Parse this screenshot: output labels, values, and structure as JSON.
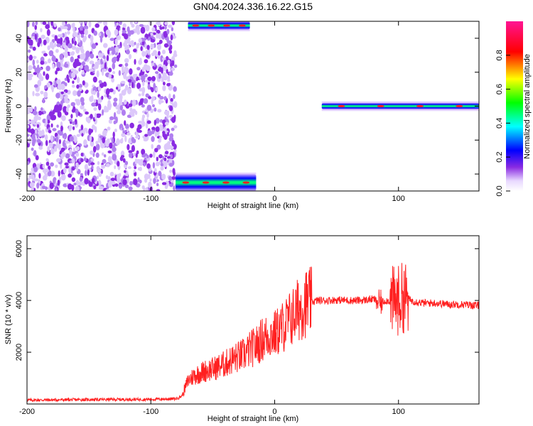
{
  "title": "GN04.2024.336.16.22.G15",
  "chart_data": [
    {
      "type": "heatmap",
      "xlabel": "Height of straight line (km)",
      "ylabel": "Frequency (Hz)",
      "xlim": [
        -200,
        165
      ],
      "ylim": [
        -50,
        50
      ],
      "xticks": [
        -200,
        -100,
        0,
        100
      ],
      "yticks": [
        -40,
        -20,
        0,
        20,
        40
      ],
      "colorbar": {
        "label": "Normalized spectral amplitude",
        "range": [
          0,
          1
        ],
        "ticks": [
          0.0,
          0.2,
          0.4,
          0.6,
          0.8
        ],
        "colors": [
          "#ffffff",
          "#e8d8ff",
          "#8a2be2",
          "#0000ff",
          "#00ffff",
          "#00ff00",
          "#ffff00",
          "#ff0000",
          "#ff1493"
        ]
      },
      "regions": [
        {
          "x": [
            -200,
            -80
          ],
          "y": [
            -50,
            50
          ],
          "kind": "noise"
        },
        {
          "x": [
            -80,
            -15
          ],
          "y": [
            -50,
            -40
          ],
          "kind": "tone",
          "amp": 0.8
        },
        {
          "x": [
            -70,
            -20
          ],
          "y": [
            45,
            50
          ],
          "kind": "tone",
          "amp": 0.8
        },
        {
          "x": [
            38,
            165
          ],
          "y": [
            -2,
            2
          ],
          "kind": "tone",
          "amp": 0.9
        }
      ]
    },
    {
      "type": "line",
      "xlabel": "Height of straight line (km)",
      "ylabel": "SNR (10 * v/v)",
      "xlim": [
        -200,
        165
      ],
      "ylim": [
        0,
        6500
      ],
      "xticks": [
        -200,
        -100,
        0,
        100
      ],
      "yticks": [
        2000,
        4000,
        6000
      ],
      "series": [
        {
          "color": "#ff2020",
          "x": [
            -200,
            -150,
            -100,
            -80,
            -75,
            -70,
            -65,
            -60,
            -55,
            -50,
            -45,
            -40,
            -35,
            -30,
            -25,
            -20,
            -15,
            -10,
            -5,
            0,
            5,
            10,
            15,
            20,
            25,
            30,
            35,
            40,
            50,
            60,
            70,
            80,
            85,
            90,
            95,
            100,
            105,
            110,
            120,
            130,
            140,
            150,
            165
          ],
          "values": [
            150,
            170,
            180,
            200,
            300,
            900,
            1100,
            1200,
            1300,
            1350,
            1450,
            1550,
            1700,
            1800,
            1900,
            2100,
            2250,
            2500,
            2650,
            2700,
            2900,
            3150,
            3400,
            3700,
            3900,
            3950,
            4000,
            4000,
            4020,
            4000,
            4000,
            4050,
            3900,
            4000,
            3950,
            4000,
            4150,
            4000,
            3900,
            3900,
            3850,
            3850,
            3800
          ]
        }
      ]
    }
  ]
}
